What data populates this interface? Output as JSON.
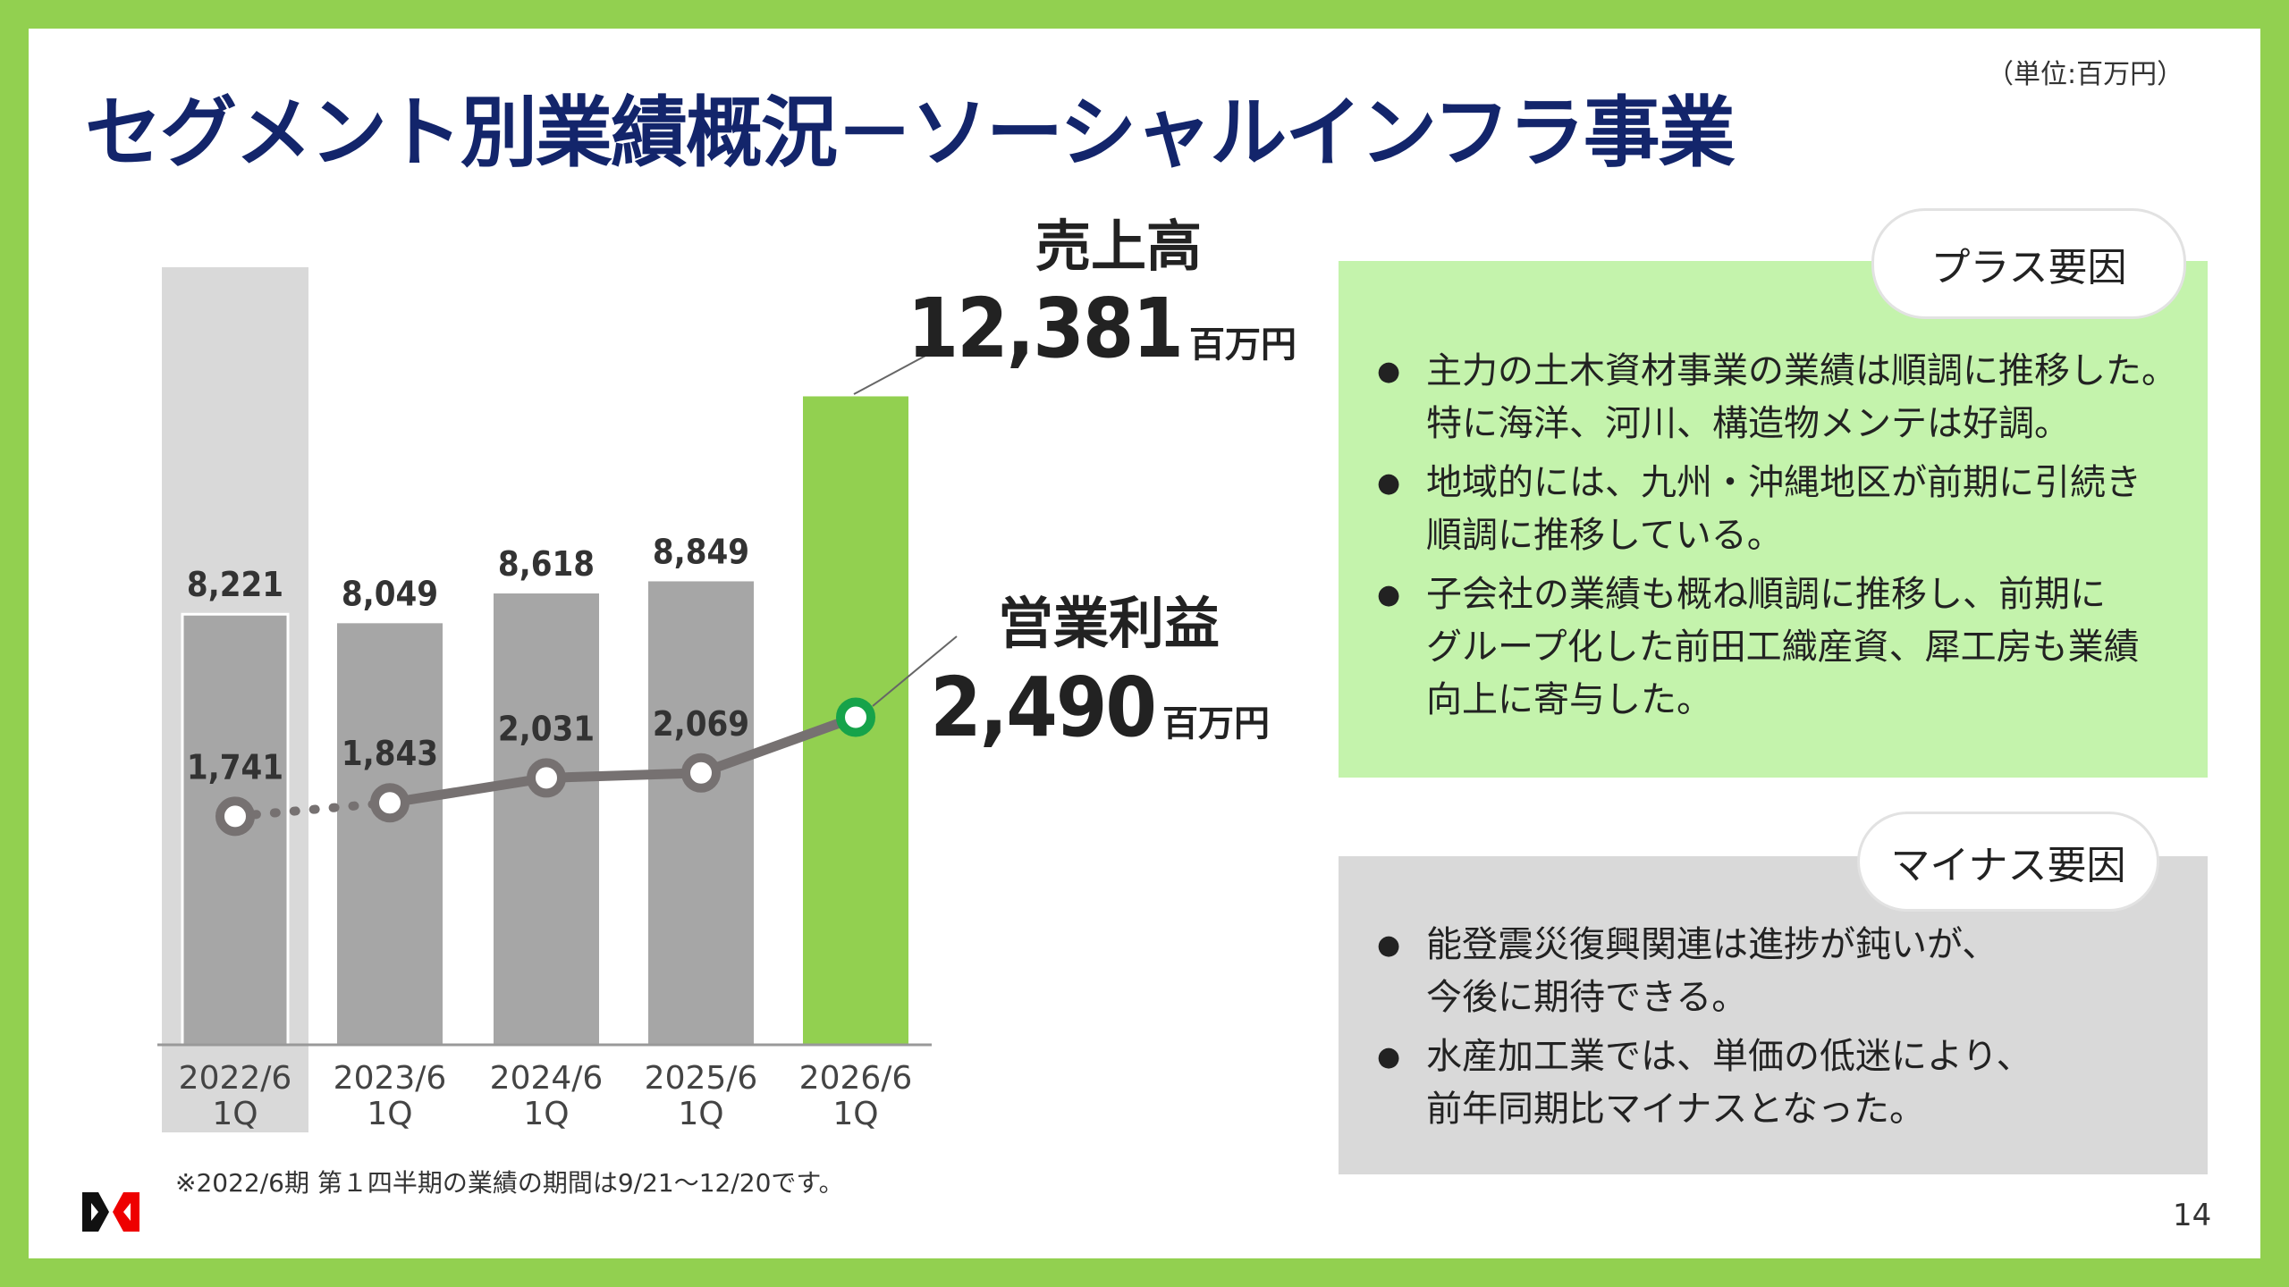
{
  "title": "セグメント別業績概況－ソーシャルインフラ事業",
  "unit_note": "（単位:百万円）",
  "callouts": {
    "sales": {
      "label": "売上高",
      "value": "12,381",
      "unit": "百万円"
    },
    "operating_profit": {
      "label": "営業利益",
      "value": "2,490",
      "unit": "百万円"
    }
  },
  "plus_panel": {
    "heading": "プラス要因",
    "items": [
      "主力の土木資材事業の業績は順調に推移した。\n特に海洋、河川、構造物メンテは好調。",
      "地域的には、九州・沖縄地区が前期に引続き\n順調に推移している。",
      "子会社の業績も概ね順調に推移し、前期に\nグループ化した前田工織産資、犀工房も業績\n向上に寄与した。"
    ]
  },
  "minus_panel": {
    "heading": "マイナス要因",
    "items": [
      "能登震災復興関連は進捗が鈍いが、\n今後に期待できる。",
      "水産加工業では、単価の低迷により、\n前年同期比マイナスとなった。"
    ]
  },
  "footnote": "※2022/6期  第１四半期の業績の期間は9/21～12/20です。",
  "page_number": "14",
  "logo_text": "",
  "colors": {
    "title": "#13256b",
    "frame": "#92d050",
    "bar": "#a6a6a6",
    "bar_current": "#92d050",
    "highlight_bg": "#d9d9d9",
    "line": "#767171",
    "marker_current": "#16a34a",
    "plus_bg": "#c4f3ac",
    "minus_bg": "#d9d9d9"
  },
  "chart_data": {
    "type": "bar",
    "categories": [
      "2022/6\n1Q",
      "2023/6\n1Q",
      "2024/6\n1Q",
      "2025/6\n1Q",
      "2026/6\n1Q"
    ],
    "category_lines": [
      [
        "2022/6",
        "1Q"
      ],
      [
        "2023/6",
        "1Q"
      ],
      [
        "2024/6",
        "1Q"
      ],
      [
        "2025/6",
        "1Q"
      ],
      [
        "2026/6",
        "1Q"
      ]
    ],
    "series": [
      {
        "name": "売上高",
        "type": "bar",
        "values": [
          8221,
          8049,
          8618,
          8849,
          12381
        ],
        "labels": [
          "8,221",
          "8,049",
          "8,618",
          "8,849",
          ""
        ]
      },
      {
        "name": "営業利益",
        "type": "line",
        "values": [
          1741,
          1843,
          2031,
          2069,
          2490
        ],
        "labels": [
          "1,741",
          "1,843",
          "2,031",
          "2,069",
          ""
        ],
        "first_segment_dotted": true
      }
    ],
    "highlighted_category": "2022/6\n1Q",
    "grid": false,
    "units": "百万円"
  }
}
